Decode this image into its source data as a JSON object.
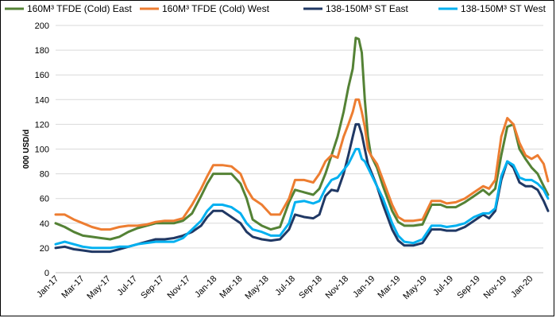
{
  "chart_data": {
    "type": "line",
    "title": "",
    "xlabel": "",
    "ylabel": "000 USD/d",
    "ylim": [
      0,
      200
    ],
    "y_ticks": [
      0,
      20,
      40,
      60,
      80,
      100,
      120,
      140,
      160,
      180,
      200
    ],
    "x_tick_labels": [
      "Jan-17",
      "Mar-17",
      "May-17",
      "Jul-17",
      "Sep-17",
      "Nov-17",
      "Jan-18",
      "Mar-18",
      "May-18",
      "Jul-18",
      "Sep-18",
      "Nov-18",
      "Jan-19",
      "Mar-19",
      "May-19",
      "Jul-19",
      "Sep-19",
      "Nov-19",
      "Jan-20"
    ],
    "x_start": "2017-01",
    "x_end": "2020-02",
    "grid": "horizontal",
    "legend_position": "top",
    "series": [
      {
        "name": "160M³ TFDE (Cold) East",
        "color": "#548235",
        "points": [
          [
            "2017-01-01",
            40
          ],
          [
            "2017-01-22",
            37
          ],
          [
            "2017-02-12",
            33
          ],
          [
            "2017-03-05",
            30
          ],
          [
            "2017-03-26",
            29
          ],
          [
            "2017-04-16",
            28
          ],
          [
            "2017-05-07",
            27
          ],
          [
            "2017-05-28",
            29
          ],
          [
            "2017-06-18",
            33
          ],
          [
            "2017-07-09",
            36
          ],
          [
            "2017-07-30",
            38
          ],
          [
            "2017-08-20",
            40
          ],
          [
            "2017-09-10",
            40
          ],
          [
            "2017-10-01",
            40
          ],
          [
            "2017-10-22",
            42
          ],
          [
            "2017-11-12",
            48
          ],
          [
            "2017-12-03",
            62
          ],
          [
            "2017-12-17",
            72
          ],
          [
            "2017-12-31",
            80
          ],
          [
            "2018-01-21",
            80
          ],
          [
            "2018-02-11",
            80
          ],
          [
            "2018-03-04",
            72
          ],
          [
            "2018-03-18",
            60
          ],
          [
            "2018-04-01",
            43
          ],
          [
            "2018-04-22",
            38
          ],
          [
            "2018-05-13",
            35
          ],
          [
            "2018-06-03",
            37
          ],
          [
            "2018-06-24",
            57
          ],
          [
            "2018-07-08",
            67
          ],
          [
            "2018-07-29",
            65
          ],
          [
            "2018-08-19",
            63
          ],
          [
            "2018-09-02",
            68
          ],
          [
            "2018-09-16",
            80
          ],
          [
            "2018-09-30",
            95
          ],
          [
            "2018-10-14",
            110
          ],
          [
            "2018-10-28",
            130
          ],
          [
            "2018-11-08",
            150
          ],
          [
            "2018-11-18",
            165
          ],
          [
            "2018-11-25",
            190
          ],
          [
            "2018-12-02",
            189
          ],
          [
            "2018-12-09",
            178
          ],
          [
            "2018-12-16",
            140
          ],
          [
            "2018-12-23",
            110
          ],
          [
            "2018-12-30",
            95
          ],
          [
            "2019-01-13",
            85
          ],
          [
            "2019-01-27",
            70
          ],
          [
            "2019-02-17",
            50
          ],
          [
            "2019-03-03",
            41
          ],
          [
            "2019-03-17",
            38
          ],
          [
            "2019-04-07",
            38
          ],
          [
            "2019-04-28",
            39
          ],
          [
            "2019-05-19",
            55
          ],
          [
            "2019-06-09",
            55
          ],
          [
            "2019-06-23",
            53
          ],
          [
            "2019-07-14",
            53
          ],
          [
            "2019-08-04",
            57
          ],
          [
            "2019-08-25",
            62
          ],
          [
            "2019-09-15",
            67
          ],
          [
            "2019-09-29",
            63
          ],
          [
            "2019-10-13",
            68
          ],
          [
            "2019-10-27",
            95
          ],
          [
            "2019-11-10",
            118
          ],
          [
            "2019-11-24",
            120
          ],
          [
            "2019-12-08",
            100
          ],
          [
            "2019-12-22",
            92
          ],
          [
            "2020-01-05",
            85
          ],
          [
            "2020-01-19",
            80
          ],
          [
            "2020-02-02",
            70
          ],
          [
            "2020-02-12",
            63
          ]
        ]
      },
      {
        "name": "160M³ TFDE (Cold) West",
        "color": "#ED7D31",
        "points": [
          [
            "2017-01-01",
            47
          ],
          [
            "2017-01-22",
            47
          ],
          [
            "2017-02-12",
            43
          ],
          [
            "2017-03-05",
            40
          ],
          [
            "2017-03-26",
            37
          ],
          [
            "2017-04-16",
            35
          ],
          [
            "2017-05-07",
            35
          ],
          [
            "2017-05-28",
            37
          ],
          [
            "2017-06-18",
            38
          ],
          [
            "2017-07-09",
            38
          ],
          [
            "2017-07-30",
            39
          ],
          [
            "2017-08-20",
            41
          ],
          [
            "2017-09-10",
            42
          ],
          [
            "2017-10-01",
            42
          ],
          [
            "2017-10-22",
            44
          ],
          [
            "2017-11-12",
            55
          ],
          [
            "2017-12-03",
            68
          ],
          [
            "2017-12-17",
            78
          ],
          [
            "2017-12-31",
            87
          ],
          [
            "2018-01-21",
            87
          ],
          [
            "2018-02-11",
            86
          ],
          [
            "2018-03-04",
            80
          ],
          [
            "2018-03-18",
            68
          ],
          [
            "2018-04-01",
            60
          ],
          [
            "2018-04-22",
            55
          ],
          [
            "2018-05-13",
            47
          ],
          [
            "2018-06-03",
            47
          ],
          [
            "2018-06-24",
            60
          ],
          [
            "2018-07-08",
            75
          ],
          [
            "2018-07-29",
            75
          ],
          [
            "2018-08-19",
            73
          ],
          [
            "2018-09-02",
            80
          ],
          [
            "2018-09-16",
            90
          ],
          [
            "2018-09-30",
            95
          ],
          [
            "2018-10-14",
            93
          ],
          [
            "2018-10-28",
            110
          ],
          [
            "2018-11-08",
            120
          ],
          [
            "2018-11-18",
            130
          ],
          [
            "2018-11-25",
            140
          ],
          [
            "2018-12-02",
            140
          ],
          [
            "2018-12-09",
            130
          ],
          [
            "2018-12-16",
            118
          ],
          [
            "2018-12-23",
            100
          ],
          [
            "2018-12-30",
            95
          ],
          [
            "2019-01-13",
            88
          ],
          [
            "2019-01-27",
            75
          ],
          [
            "2019-02-17",
            55
          ],
          [
            "2019-03-03",
            45
          ],
          [
            "2019-03-17",
            42
          ],
          [
            "2019-04-07",
            42
          ],
          [
            "2019-04-28",
            43
          ],
          [
            "2019-05-19",
            58
          ],
          [
            "2019-06-09",
            58
          ],
          [
            "2019-06-23",
            56
          ],
          [
            "2019-07-14",
            57
          ],
          [
            "2019-08-04",
            60
          ],
          [
            "2019-08-25",
            65
          ],
          [
            "2019-09-15",
            70
          ],
          [
            "2019-09-29",
            68
          ],
          [
            "2019-10-13",
            75
          ],
          [
            "2019-10-27",
            110
          ],
          [
            "2019-11-10",
            125
          ],
          [
            "2019-11-24",
            120
          ],
          [
            "2019-12-08",
            105
          ],
          [
            "2019-12-22",
            95
          ],
          [
            "2020-01-05",
            92
          ],
          [
            "2020-01-19",
            95
          ],
          [
            "2020-02-02",
            88
          ],
          [
            "2020-02-12",
            74
          ]
        ]
      },
      {
        "name": "138-150M³ ST East",
        "color": "#203864",
        "points": [
          [
            "2017-01-01",
            20
          ],
          [
            "2017-01-22",
            21
          ],
          [
            "2017-02-12",
            19
          ],
          [
            "2017-03-05",
            18
          ],
          [
            "2017-03-26",
            17
          ],
          [
            "2017-04-16",
            17
          ],
          [
            "2017-05-07",
            17
          ],
          [
            "2017-05-28",
            19
          ],
          [
            "2017-06-18",
            21
          ],
          [
            "2017-07-09",
            23
          ],
          [
            "2017-07-30",
            25
          ],
          [
            "2017-08-20",
            27
          ],
          [
            "2017-09-10",
            27
          ],
          [
            "2017-10-01",
            28
          ],
          [
            "2017-10-22",
            30
          ],
          [
            "2017-11-12",
            33
          ],
          [
            "2017-12-03",
            38
          ],
          [
            "2017-12-17",
            45
          ],
          [
            "2017-12-31",
            50
          ],
          [
            "2018-01-21",
            50
          ],
          [
            "2018-02-11",
            45
          ],
          [
            "2018-03-04",
            40
          ],
          [
            "2018-03-18",
            33
          ],
          [
            "2018-04-01",
            29
          ],
          [
            "2018-04-22",
            27
          ],
          [
            "2018-05-13",
            26
          ],
          [
            "2018-06-03",
            27
          ],
          [
            "2018-06-24",
            35
          ],
          [
            "2018-07-08",
            47
          ],
          [
            "2018-07-29",
            45
          ],
          [
            "2018-08-19",
            44
          ],
          [
            "2018-09-02",
            47
          ],
          [
            "2018-09-16",
            62
          ],
          [
            "2018-09-30",
            67
          ],
          [
            "2018-10-14",
            66
          ],
          [
            "2018-10-28",
            80
          ],
          [
            "2018-11-08",
            95
          ],
          [
            "2018-11-18",
            110
          ],
          [
            "2018-11-25",
            120
          ],
          [
            "2018-12-02",
            120
          ],
          [
            "2018-12-09",
            112
          ],
          [
            "2018-12-16",
            100
          ],
          [
            "2018-12-23",
            88
          ],
          [
            "2018-12-30",
            82
          ],
          [
            "2019-01-13",
            70
          ],
          [
            "2019-01-27",
            55
          ],
          [
            "2019-02-17",
            35
          ],
          [
            "2019-03-03",
            26
          ],
          [
            "2019-03-17",
            22
          ],
          [
            "2019-04-07",
            22
          ],
          [
            "2019-04-28",
            24
          ],
          [
            "2019-05-19",
            35
          ],
          [
            "2019-06-09",
            35
          ],
          [
            "2019-06-23",
            34
          ],
          [
            "2019-07-14",
            34
          ],
          [
            "2019-08-04",
            37
          ],
          [
            "2019-08-25",
            42
          ],
          [
            "2019-09-15",
            47
          ],
          [
            "2019-09-29",
            44
          ],
          [
            "2019-10-13",
            50
          ],
          [
            "2019-10-27",
            75
          ],
          [
            "2019-11-10",
            90
          ],
          [
            "2019-11-24",
            85
          ],
          [
            "2019-12-08",
            73
          ],
          [
            "2019-12-22",
            70
          ],
          [
            "2020-01-05",
            70
          ],
          [
            "2020-01-19",
            67
          ],
          [
            "2020-02-02",
            58
          ],
          [
            "2020-02-12",
            50
          ]
        ]
      },
      {
        "name": "138-150M³ ST West",
        "color": "#00B0F0",
        "points": [
          [
            "2017-01-01",
            23
          ],
          [
            "2017-01-22",
            25
          ],
          [
            "2017-02-12",
            23
          ],
          [
            "2017-03-05",
            21
          ],
          [
            "2017-03-26",
            20
          ],
          [
            "2017-04-16",
            20
          ],
          [
            "2017-05-07",
            20
          ],
          [
            "2017-05-28",
            21
          ],
          [
            "2017-06-18",
            21
          ],
          [
            "2017-07-09",
            23
          ],
          [
            "2017-07-30",
            24
          ],
          [
            "2017-08-20",
            25
          ],
          [
            "2017-09-10",
            25
          ],
          [
            "2017-10-01",
            25
          ],
          [
            "2017-10-22",
            28
          ],
          [
            "2017-11-12",
            35
          ],
          [
            "2017-12-03",
            42
          ],
          [
            "2017-12-17",
            50
          ],
          [
            "2017-12-31",
            55
          ],
          [
            "2018-01-21",
            55
          ],
          [
            "2018-02-11",
            53
          ],
          [
            "2018-03-04",
            48
          ],
          [
            "2018-03-18",
            40
          ],
          [
            "2018-04-01",
            35
          ],
          [
            "2018-04-22",
            33
          ],
          [
            "2018-05-13",
            30
          ],
          [
            "2018-06-03",
            30
          ],
          [
            "2018-06-24",
            40
          ],
          [
            "2018-07-08",
            57
          ],
          [
            "2018-07-29",
            58
          ],
          [
            "2018-08-19",
            56
          ],
          [
            "2018-09-02",
            58
          ],
          [
            "2018-09-16",
            68
          ],
          [
            "2018-09-30",
            75
          ],
          [
            "2018-10-14",
            77
          ],
          [
            "2018-10-28",
            83
          ],
          [
            "2018-11-08",
            88
          ],
          [
            "2018-11-18",
            95
          ],
          [
            "2018-11-25",
            100
          ],
          [
            "2018-12-02",
            100
          ],
          [
            "2018-12-09",
            92
          ],
          [
            "2018-12-16",
            90
          ],
          [
            "2018-12-23",
            85
          ],
          [
            "2018-12-30",
            80
          ],
          [
            "2019-01-13",
            70
          ],
          [
            "2019-01-27",
            60
          ],
          [
            "2019-02-17",
            40
          ],
          [
            "2019-03-03",
            30
          ],
          [
            "2019-03-17",
            25
          ],
          [
            "2019-04-07",
            24
          ],
          [
            "2019-04-28",
            27
          ],
          [
            "2019-05-19",
            38
          ],
          [
            "2019-06-09",
            38
          ],
          [
            "2019-06-23",
            37
          ],
          [
            "2019-07-14",
            38
          ],
          [
            "2019-08-04",
            40
          ],
          [
            "2019-08-25",
            45
          ],
          [
            "2019-09-15",
            48
          ],
          [
            "2019-09-29",
            48
          ],
          [
            "2019-10-13",
            52
          ],
          [
            "2019-10-27",
            78
          ],
          [
            "2019-11-10",
            90
          ],
          [
            "2019-11-24",
            87
          ],
          [
            "2019-12-08",
            77
          ],
          [
            "2019-12-22",
            75
          ],
          [
            "2020-01-05",
            75
          ],
          [
            "2020-01-19",
            72
          ],
          [
            "2020-02-02",
            67
          ],
          [
            "2020-02-12",
            60
          ]
        ]
      }
    ]
  }
}
